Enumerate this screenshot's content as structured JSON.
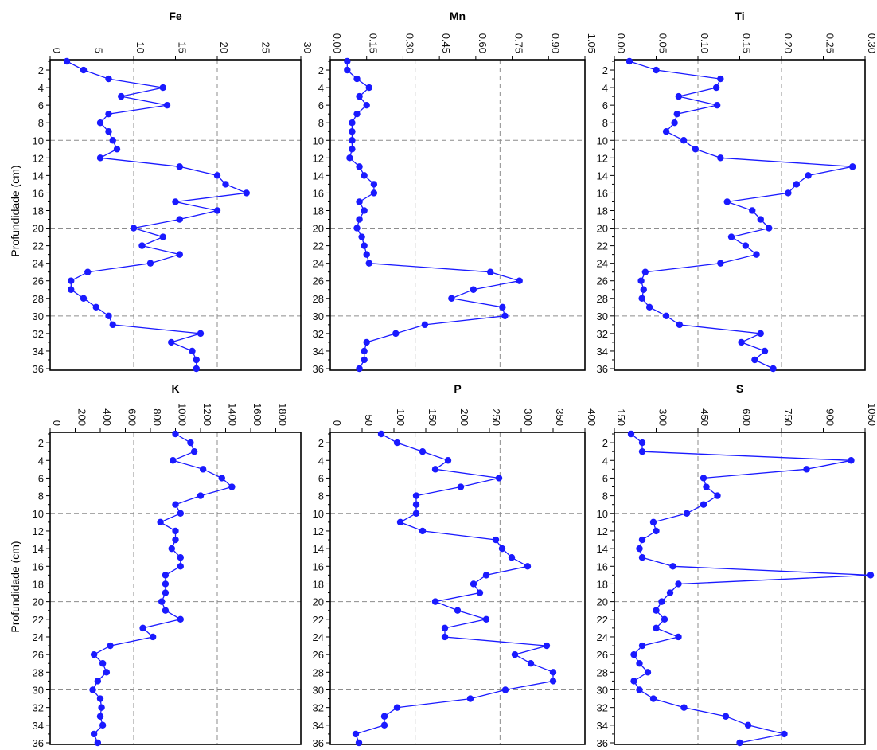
{
  "figure": {
    "ylabel": "Profundidade (cm)"
  },
  "colors": {
    "series": "#1a1aff",
    "grid": "#8c8c8c",
    "axis": "#000000"
  },
  "chart_data": [
    {
      "type": "line",
      "title": "Fe",
      "xlabel": "",
      "ylabel": "Profundidade (cm)",
      "xlim": [
        0,
        30
      ],
      "xticks": [
        "0",
        "5",
        "10",
        "15",
        "20",
        "25",
        "30"
      ],
      "xgrid": [
        10,
        20
      ],
      "ygrid": [
        10,
        20,
        30
      ],
      "ylim": [
        1,
        36
      ],
      "yticks": [
        2,
        4,
        6,
        8,
        10,
        12,
        14,
        16,
        18,
        20,
        22,
        24,
        26,
        28,
        30,
        32,
        34,
        36
      ],
      "depth": [
        1,
        2,
        3,
        4,
        5,
        6,
        7,
        8,
        9,
        10,
        11,
        12,
        13,
        14,
        15,
        16,
        17,
        18,
        19,
        20,
        21,
        22,
        23,
        24,
        25,
        26,
        27,
        28,
        29,
        30,
        31,
        32,
        33,
        34,
        35,
        36
      ],
      "values": [
        2.0,
        4.0,
        7.0,
        13.5,
        8.5,
        14.0,
        7.0,
        6.0,
        7.0,
        7.5,
        8.0,
        6.0,
        15.5,
        20.0,
        21.0,
        23.5,
        15.0,
        20.0,
        15.5,
        10.0,
        13.5,
        11.0,
        15.5,
        12.0,
        4.5,
        2.5,
        2.5,
        4.0,
        5.5,
        7.0,
        7.5,
        18.0,
        14.5,
        17.0,
        17.5,
        17.5
      ]
    },
    {
      "type": "line",
      "title": "Mn",
      "xlabel": "",
      "ylabel": "",
      "xlim": [
        0,
        1.05
      ],
      "xticks": [
        "0.00",
        "0.15",
        "0.30",
        "0.45",
        "0.60",
        "0.75",
        "0.90",
        "1.05"
      ],
      "xgrid": [
        0.35,
        0.7
      ],
      "ygrid": [
        10,
        20,
        30
      ],
      "ylim": [
        1,
        36
      ],
      "yticks": [
        2,
        4,
        6,
        8,
        10,
        12,
        14,
        16,
        18,
        20,
        22,
        24,
        26,
        28,
        30,
        32,
        34,
        36
      ],
      "depth": [
        1,
        2,
        3,
        4,
        5,
        6,
        7,
        8,
        9,
        10,
        11,
        12,
        13,
        14,
        15,
        16,
        17,
        18,
        19,
        20,
        21,
        22,
        23,
        24,
        25,
        26,
        27,
        28,
        29,
        30,
        31,
        32,
        33,
        34,
        35,
        36
      ],
      "values": [
        0.07,
        0.07,
        0.11,
        0.16,
        0.12,
        0.15,
        0.11,
        0.09,
        0.09,
        0.09,
        0.09,
        0.08,
        0.12,
        0.14,
        0.18,
        0.18,
        0.12,
        0.14,
        0.12,
        0.11,
        0.13,
        0.14,
        0.15,
        0.16,
        0.66,
        0.78,
        0.59,
        0.5,
        0.71,
        0.72,
        0.39,
        0.27,
        0.15,
        0.14,
        0.14,
        0.12
      ]
    },
    {
      "type": "line",
      "title": "Ti",
      "xlabel": "",
      "ylabel": "",
      "xlim": [
        0,
        0.3
      ],
      "xticks": [
        "0.00",
        "0.05",
        "0.10",
        "0.15",
        "0.20",
        "0.25",
        "0.30"
      ],
      "xgrid": [
        0.1,
        0.2
      ],
      "ygrid": [
        10,
        20,
        30
      ],
      "ylim": [
        1,
        36
      ],
      "yticks": [
        2,
        4,
        6,
        8,
        10,
        12,
        14,
        16,
        18,
        20,
        22,
        24,
        26,
        28,
        30,
        32,
        34,
        36
      ],
      "depth": [
        1,
        2,
        3,
        4,
        5,
        6,
        7,
        8,
        9,
        10,
        11,
        12,
        13,
        14,
        15,
        16,
        17,
        18,
        19,
        20,
        21,
        22,
        23,
        24,
        25,
        26,
        27,
        28,
        29,
        30,
        31,
        32,
        33,
        34,
        35,
        36
      ],
      "values": [
        0.018,
        0.05,
        0.127,
        0.122,
        0.077,
        0.123,
        0.075,
        0.072,
        0.062,
        0.083,
        0.097,
        0.127,
        0.285,
        0.232,
        0.218,
        0.208,
        0.135,
        0.165,
        0.175,
        0.185,
        0.14,
        0.157,
        0.17,
        0.127,
        0.037,
        0.032,
        0.035,
        0.033,
        0.042,
        0.062,
        0.078,
        0.175,
        0.152,
        0.18,
        0.168,
        0.19
      ]
    },
    {
      "type": "line",
      "title": "K",
      "xlabel": "",
      "ylabel": "Profundidade (cm)",
      "xlim": [
        0,
        2000
      ],
      "xticks": [
        "0",
        "200",
        "400",
        "600",
        "800",
        "1000",
        "1200",
        "1400",
        "1600",
        "1800"
      ],
      "xgrid": [
        666.7,
        1333.3
      ],
      "ygrid": [
        10,
        20,
        30
      ],
      "ylim": [
        1,
        36
      ],
      "yticks": [
        2,
        4,
        6,
        8,
        10,
        12,
        14,
        16,
        18,
        20,
        22,
        24,
        26,
        28,
        30,
        32,
        34,
        36
      ],
      "depth": [
        1,
        2,
        3,
        4,
        5,
        6,
        7,
        8,
        9,
        10,
        11,
        12,
        13,
        14,
        15,
        16,
        17,
        18,
        19,
        20,
        21,
        22,
        23,
        24,
        25,
        26,
        27,
        28,
        29,
        30,
        31,
        32,
        33,
        34,
        35,
        36
      ],
      "values": [
        1000,
        1120,
        1150,
        980,
        1220,
        1370,
        1450,
        1200,
        1000,
        1040,
        880,
        1000,
        1000,
        970,
        1040,
        1040,
        920,
        920,
        920,
        890,
        920,
        1040,
        740,
        820,
        480,
        350,
        420,
        450,
        380,
        340,
        400,
        410,
        400,
        420,
        350,
        380
      ]
    },
    {
      "type": "line",
      "title": "P",
      "xlabel": "",
      "ylabel": "",
      "xlim": [
        0,
        400
      ],
      "xticks": [
        "0",
        "50",
        "100",
        "150",
        "200",
        "250",
        "300",
        "350",
        "400"
      ],
      "xgrid": [
        133.3,
        266.7
      ],
      "ygrid": [
        10,
        20,
        30
      ],
      "ylim": [
        1,
        36
      ],
      "yticks": [
        2,
        4,
        6,
        8,
        10,
        12,
        14,
        16,
        18,
        20,
        22,
        24,
        26,
        28,
        30,
        32,
        34,
        36
      ],
      "depth": [
        1,
        2,
        3,
        4,
        5,
        6,
        7,
        8,
        9,
        10,
        11,
        12,
        13,
        14,
        15,
        16,
        17,
        18,
        19,
        20,
        21,
        22,
        23,
        24,
        25,
        26,
        27,
        28,
        29,
        30,
        31,
        32,
        33,
        34,
        35,
        36
      ],
      "values": [
        80,
        105,
        145,
        185,
        165,
        265,
        205,
        135,
        135,
        135,
        110,
        145,
        260,
        270,
        285,
        310,
        245,
        225,
        235,
        165,
        200,
        245,
        180,
        180,
        340,
        290,
        315,
        350,
        350,
        275,
        220,
        105,
        85,
        85,
        40,
        45
      ]
    },
    {
      "type": "line",
      "title": "S",
      "xlabel": "",
      "ylabel": "",
      "xlim": [
        150,
        1050
      ],
      "xticks": [
        "150",
        "300",
        "450",
        "600",
        "750",
        "900",
        "1050"
      ],
      "xgrid": [
        450,
        750
      ],
      "ygrid": [
        10,
        20,
        30
      ],
      "ylim": [
        1,
        36
      ],
      "yticks": [
        2,
        4,
        6,
        8,
        10,
        12,
        14,
        16,
        18,
        20,
        22,
        24,
        26,
        28,
        30,
        32,
        34,
        36
      ],
      "depth": [
        1,
        2,
        3,
        4,
        5,
        6,
        7,
        8,
        9,
        10,
        11,
        12,
        13,
        14,
        15,
        16,
        17,
        18,
        19,
        20,
        21,
        22,
        23,
        24,
        25,
        26,
        27,
        28,
        29,
        30,
        31,
        32,
        33,
        34,
        35,
        36
      ],
      "values": [
        210,
        250,
        250,
        1000,
        840,
        470,
        480,
        520,
        470,
        410,
        290,
        300,
        250,
        240,
        250,
        360,
        1070,
        380,
        350,
        320,
        300,
        330,
        300,
        380,
        250,
        220,
        240,
        270,
        220,
        240,
        290,
        400,
        550,
        630,
        760,
        600
      ]
    }
  ]
}
